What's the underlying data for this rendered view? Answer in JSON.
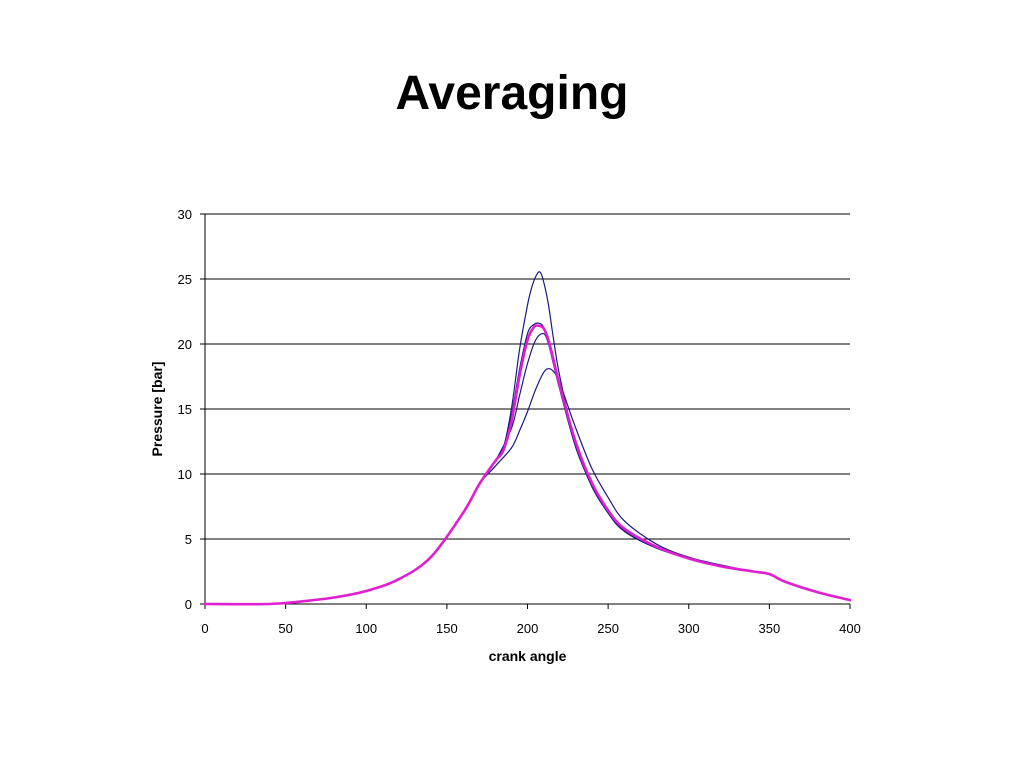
{
  "slide": {
    "title": "Averaging"
  },
  "chart_data": {
    "type": "line",
    "title": "",
    "xlabel": "crank angle",
    "ylabel": "Pressure [bar]",
    "xlim": [
      0,
      400
    ],
    "ylim": [
      0,
      30
    ],
    "x_ticks": [
      0,
      50,
      100,
      150,
      200,
      250,
      300,
      350,
      400
    ],
    "y_ticks": [
      0,
      5,
      10,
      15,
      20,
      25,
      30
    ],
    "grid": "horizontal",
    "legend": "none",
    "series": [
      {
        "color": "#1a1a80",
        "width": 1.2,
        "x": [
          0,
          40,
          60,
          80,
          100,
          120,
          140,
          160,
          170,
          180,
          185,
          190,
          195,
          200,
          203,
          206,
          208,
          210,
          213,
          216,
          220,
          230,
          240,
          250,
          260,
          280,
          300,
          320,
          340,
          350,
          360,
          380,
          400
        ],
        "y": [
          0,
          0,
          0.2,
          0.5,
          1.0,
          1.9,
          3.6,
          7.0,
          9.2,
          11.0,
          12.0,
          15.0,
          19.5,
          23.0,
          24.5,
          25.4,
          25.5,
          24.8,
          23.0,
          20.5,
          17.5,
          12.2,
          9.0,
          7.0,
          5.6,
          4.3,
          3.5,
          2.9,
          2.5,
          2.3,
          1.7,
          0.9,
          0.3
        ]
      },
      {
        "color": "#1a1a80",
        "width": 1.2,
        "x": [
          0,
          40,
          60,
          80,
          100,
          120,
          140,
          160,
          170,
          180,
          190,
          195,
          200,
          205,
          210,
          213,
          216,
          220,
          230,
          240,
          250,
          260,
          280,
          300,
          320,
          340,
          350,
          360,
          380,
          400
        ],
        "y": [
          0,
          0,
          0.2,
          0.5,
          1.0,
          1.9,
          3.6,
          7.0,
          9.2,
          10.6,
          12.0,
          13.3,
          14.8,
          16.5,
          17.8,
          18.1,
          17.9,
          17.0,
          13.5,
          10.4,
          8.2,
          6.4,
          4.6,
          3.6,
          3.0,
          2.5,
          2.3,
          1.7,
          0.9,
          0.3
        ]
      },
      {
        "color": "#1a1a80",
        "width": 1.2,
        "x": [
          0,
          40,
          60,
          80,
          100,
          120,
          140,
          160,
          170,
          180,
          190,
          195,
          200,
          205,
          210,
          213,
          216,
          220,
          230,
          240,
          250,
          260,
          280,
          300,
          320,
          340,
          350,
          360,
          380,
          400
        ],
        "y": [
          0,
          0,
          0.2,
          0.5,
          1.0,
          1.9,
          3.6,
          7.0,
          9.2,
          11.0,
          13.5,
          16.0,
          18.5,
          20.3,
          20.8,
          20.0,
          18.5,
          16.5,
          12.0,
          9.1,
          7.0,
          5.6,
          4.3,
          3.5,
          2.9,
          2.5,
          2.3,
          1.7,
          0.9,
          0.3
        ]
      },
      {
        "color": "#1a1a80",
        "width": 1.2,
        "x": [
          0,
          40,
          60,
          80,
          100,
          120,
          140,
          160,
          170,
          180,
          185,
          190,
          195,
          200,
          204,
          207,
          210,
          214,
          218,
          222,
          230,
          240,
          250,
          260,
          280,
          300,
          320,
          340,
          350,
          360,
          380,
          400
        ],
        "y": [
          0,
          0,
          0.2,
          0.5,
          1.0,
          1.9,
          3.6,
          7.0,
          9.2,
          11.0,
          12.0,
          14.5,
          18.0,
          20.8,
          21.5,
          21.6,
          21.3,
          20.0,
          18.0,
          16.0,
          12.3,
          9.2,
          7.1,
          5.7,
          4.4,
          3.5,
          2.9,
          2.5,
          2.3,
          1.7,
          0.9,
          0.3
        ]
      },
      {
        "color": "#e020d0",
        "width": 2.6,
        "x": [
          0,
          40,
          60,
          80,
          100,
          120,
          140,
          160,
          170,
          180,
          185,
          190,
          195,
          200,
          204,
          207,
          210,
          213,
          216,
          220,
          230,
          240,
          250,
          260,
          280,
          300,
          320,
          340,
          350,
          360,
          380,
          400
        ],
        "y": [
          0,
          0,
          0.2,
          0.5,
          1.0,
          1.9,
          3.6,
          7.0,
          9.2,
          11.0,
          11.8,
          14.0,
          17.5,
          20.3,
          21.3,
          21.4,
          21.2,
          20.3,
          18.8,
          16.8,
          12.4,
          9.3,
          7.2,
          5.8,
          4.4,
          3.5,
          2.9,
          2.5,
          2.3,
          1.7,
          0.9,
          0.3
        ]
      }
    ]
  }
}
